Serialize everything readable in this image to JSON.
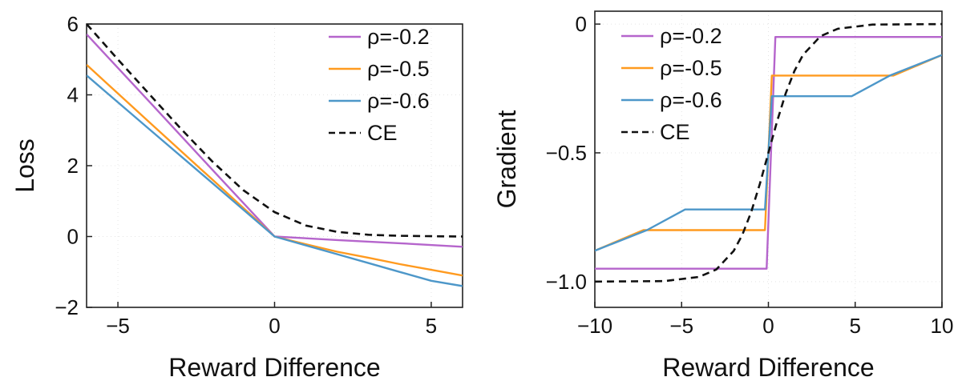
{
  "chart_data": [
    {
      "type": "line",
      "xlabel": "Reward Difference",
      "ylabel": "Loss",
      "xlim": [
        -6,
        6
      ],
      "ylim": [
        -2,
        6
      ],
      "xticks": [
        {
          "value": -5,
          "label": "−5"
        },
        {
          "value": 0,
          "label": "0"
        },
        {
          "value": 5,
          "label": "5"
        }
      ],
      "yticks": [
        {
          "value": -2,
          "label": "−2"
        },
        {
          "value": 0,
          "label": "0"
        },
        {
          "value": 2,
          "label": "2"
        },
        {
          "value": 4,
          "label": "4"
        },
        {
          "value": 6,
          "label": "6"
        }
      ],
      "grid": true,
      "legend": "top-right",
      "series": [
        {
          "name": "ρ=-0.2",
          "color": "#b565cc",
          "dash": "solid",
          "x": [
            -6,
            -4,
            -2,
            0,
            2,
            4,
            6
          ],
          "y": [
            5.71,
            3.81,
            1.9,
            0,
            -0.1,
            -0.19,
            -0.29
          ]
        },
        {
          "name": "ρ=-0.5",
          "color": "#ff9a1f",
          "dash": "solid",
          "x": [
            -6,
            -4,
            -2,
            0,
            1,
            2,
            3,
            4,
            5,
            6
          ],
          "y": [
            4.85,
            3.23,
            1.62,
            0,
            -0.22,
            -0.43,
            -0.6,
            -0.78,
            -0.94,
            -1.1
          ]
        },
        {
          "name": "ρ=-0.6",
          "color": "#4d97c9",
          "dash": "solid",
          "x": [
            -6,
            -4,
            -2,
            0,
            1,
            2,
            3,
            4,
            5,
            6
          ],
          "y": [
            4.55,
            3.03,
            1.52,
            0,
            -0.25,
            -0.5,
            -0.75,
            -1.0,
            -1.25,
            -1.4
          ]
        },
        {
          "name": "CE",
          "color": "#111111",
          "dash": "dashed",
          "x": [
            -6,
            -5,
            -4,
            -3,
            -2,
            -1,
            0,
            1,
            2,
            3,
            4,
            5,
            6
          ],
          "y": [
            6.0,
            5.0,
            4.02,
            3.05,
            2.13,
            1.31,
            0.69,
            0.31,
            0.13,
            0.05,
            0.02,
            0.01,
            0.0
          ]
        }
      ]
    },
    {
      "type": "line",
      "xlabel": "Reward Difference",
      "ylabel": "Gradient",
      "xlim": [
        -10,
        10
      ],
      "ylim": [
        -1.1,
        0.05
      ],
      "xticks": [
        {
          "value": -10,
          "label": "−10"
        },
        {
          "value": -5,
          "label": "−5"
        },
        {
          "value": 0,
          "label": "0"
        },
        {
          "value": 5,
          "label": "5"
        },
        {
          "value": 10,
          "label": "10"
        }
      ],
      "yticks": [
        {
          "value": -1.0,
          "label": "−1.0"
        },
        {
          "value": -0.5,
          "label": "−0.5"
        },
        {
          "value": 0,
          "label": "0"
        }
      ],
      "grid": true,
      "legend": "top-left",
      "series": [
        {
          "name": "ρ=-0.2",
          "color": "#b565cc",
          "dash": "solid",
          "x": [
            -10,
            -0.1,
            0.4,
            10
          ],
          "y": [
            -0.95,
            -0.95,
            -0.05,
            -0.05
          ]
        },
        {
          "name": "ρ=-0.5",
          "color": "#ff9a1f",
          "dash": "solid",
          "x": [
            -10,
            -7.2,
            -0.2,
            0.2,
            7.2,
            10
          ],
          "y": [
            -0.88,
            -0.8,
            -0.8,
            -0.2,
            -0.2,
            -0.12
          ]
        },
        {
          "name": "ρ=-0.6",
          "color": "#4d97c9",
          "dash": "solid",
          "x": [
            -10,
            -7,
            -4.8,
            -0.2,
            0.2,
            4.8,
            7,
            10
          ],
          "y": [
            -0.88,
            -0.8,
            -0.72,
            -0.72,
            -0.28,
            -0.28,
            -0.2,
            -0.12
          ]
        },
        {
          "name": "CE",
          "color": "#111111",
          "dash": "dashed",
          "x": [
            -10,
            -6,
            -4,
            -3,
            -2,
            -1.5,
            -1,
            -0.5,
            0,
            0.5,
            1,
            1.5,
            2,
            3,
            4,
            6,
            10
          ],
          "y": [
            -1.0,
            -0.998,
            -0.982,
            -0.953,
            -0.881,
            -0.818,
            -0.731,
            -0.622,
            -0.5,
            -0.378,
            -0.269,
            -0.182,
            -0.119,
            -0.047,
            -0.018,
            -0.002,
            0.0
          ]
        }
      ]
    }
  ]
}
